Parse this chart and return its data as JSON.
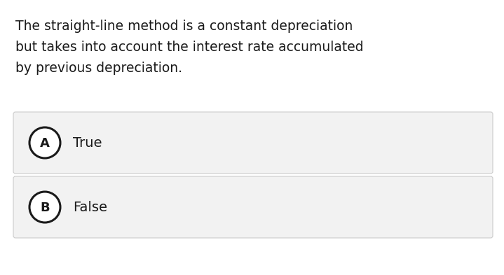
{
  "background_color": "#ffffff",
  "question_text_lines": [
    "The straight-line method is a constant depreciation",
    "but takes into account the interest rate accumulated",
    "by previous depreciation."
  ],
  "options": [
    {
      "label": "A",
      "text": "True"
    },
    {
      "label": "B",
      "text": "False"
    }
  ],
  "option_box_color": "#f2f2f2",
  "option_box_edge_color": "#cccccc",
  "text_color": "#1a1a1a",
  "question_fontsize": 13.5,
  "option_fontsize": 14,
  "label_fontsize": 13
}
